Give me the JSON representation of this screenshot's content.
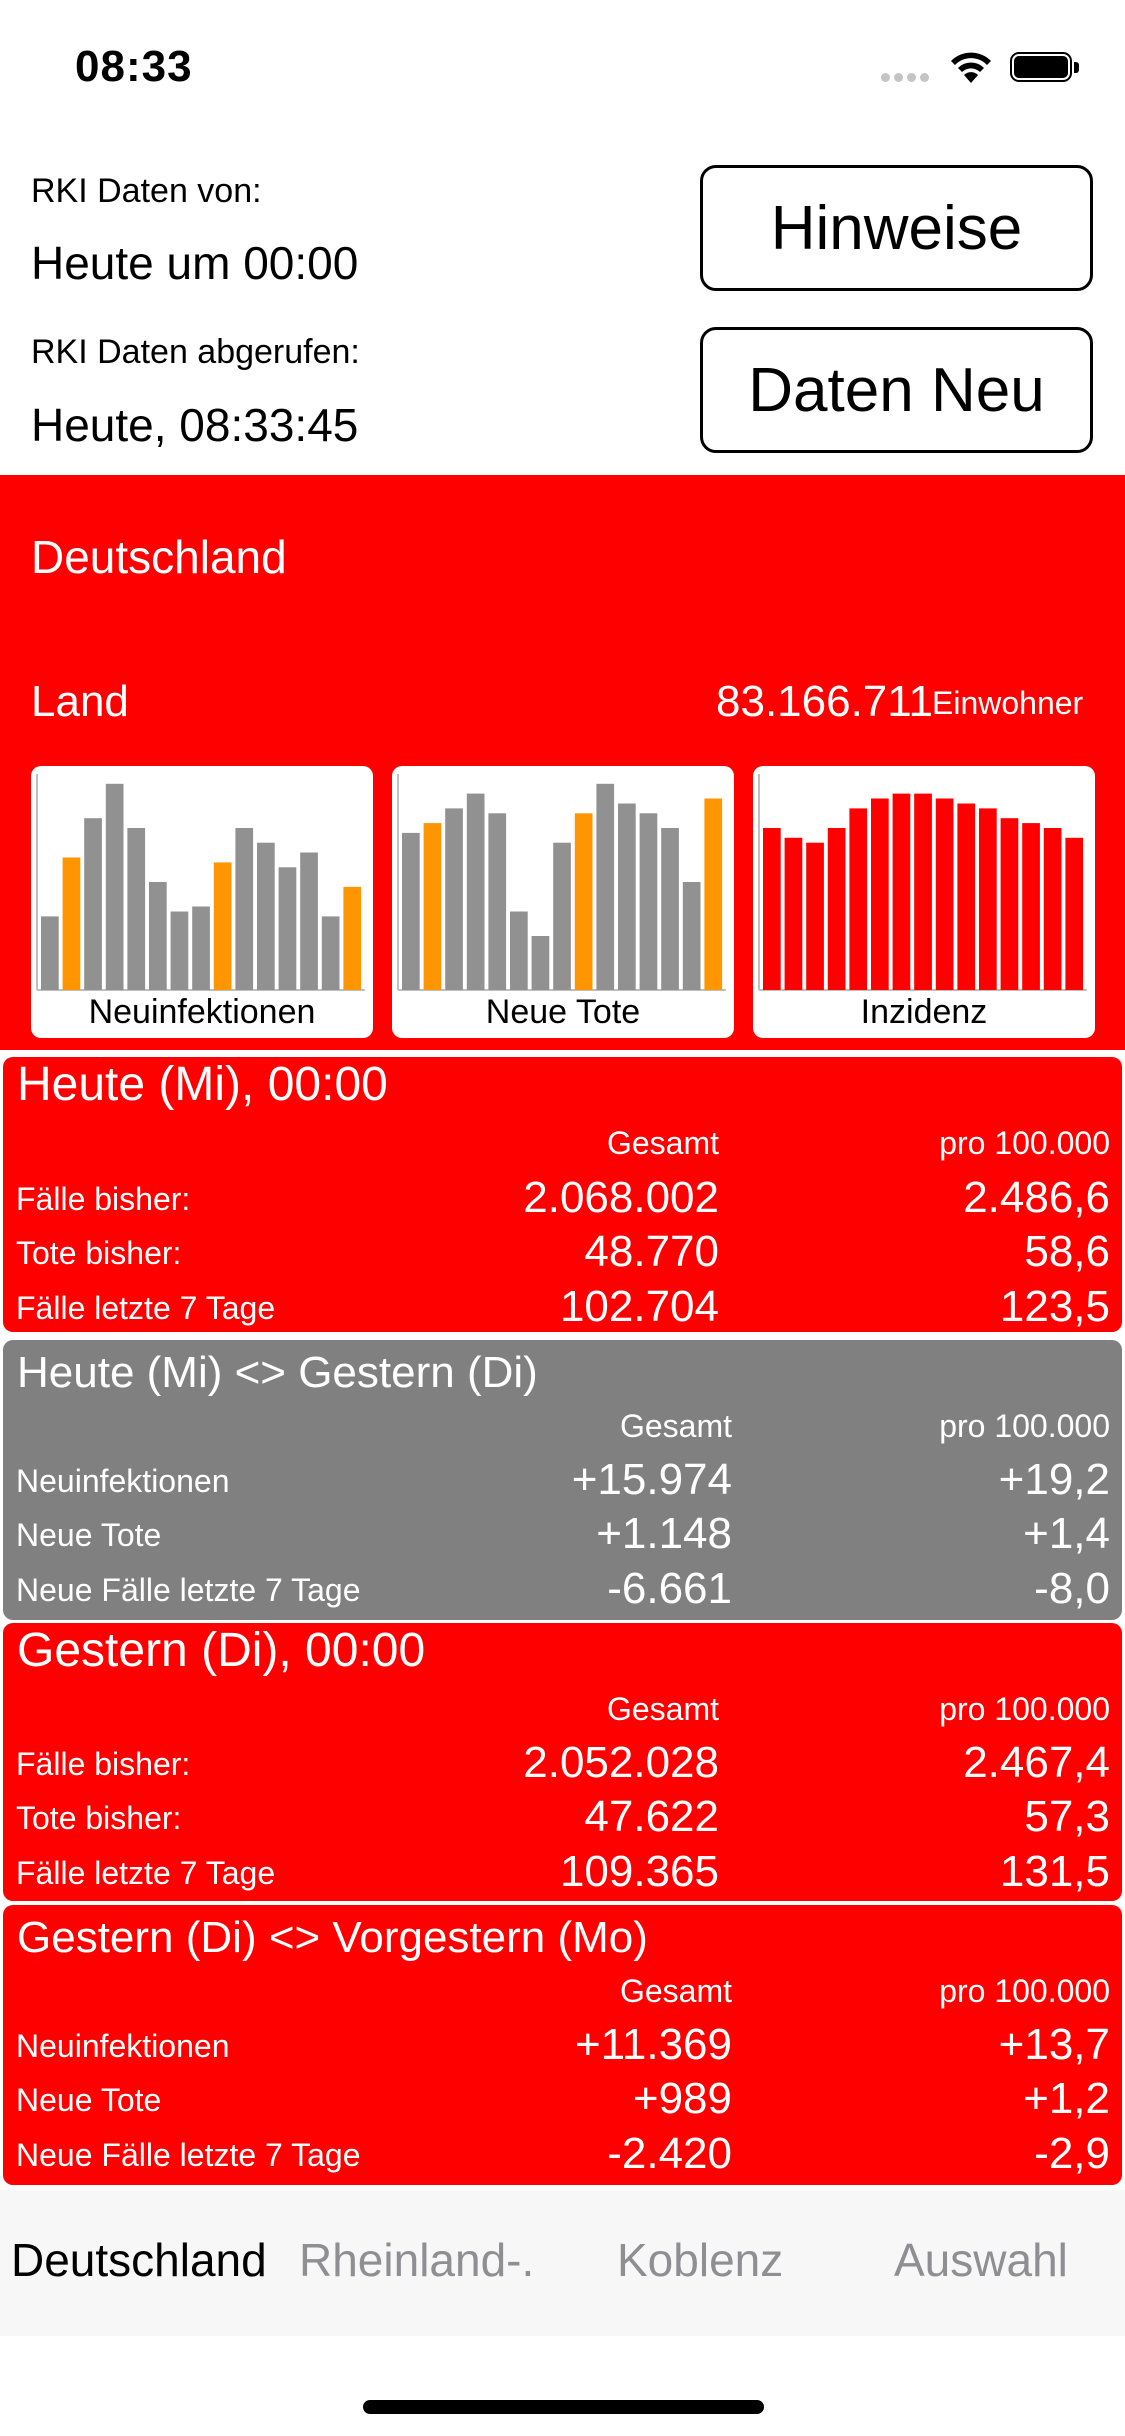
{
  "status_bar": {
    "time": "08:33"
  },
  "header": {
    "data_from_label": "RKI Daten von:",
    "data_from_value": "Heute um 00:00",
    "retrieved_label": "RKI Daten abgerufen:",
    "retrieved_value": "Heute, 08:33:45",
    "hints_button": "Hinweise",
    "refresh_button": "Daten Neu"
  },
  "region": {
    "name": "Deutschland",
    "type_label": "Land",
    "population": "83.166.711",
    "population_unit": "Einwohner"
  },
  "colors": {
    "red": "#ff0000",
    "gray_block": "#808080",
    "bar_gray": "#919191",
    "bar_orange": "#ff9500",
    "bar_red": "#ff0000"
  },
  "chart_data": [
    {
      "type": "bar",
      "title": "Neuinfektionen",
      "values": [
        7.5,
        13.5,
        17.5,
        21,
        16.5,
        11,
        8,
        8.5,
        13,
        16.5,
        15,
        12.5,
        14,
        7.5,
        10.5
      ],
      "highlight": [
        false,
        true,
        false,
        false,
        false,
        false,
        false,
        false,
        true,
        false,
        false,
        false,
        false,
        false,
        true
      ],
      "ylim": [
        0,
        22
      ]
    },
    {
      "type": "bar",
      "title": "Neue Tote",
      "values": [
        16,
        17,
        18.5,
        20,
        18,
        8,
        5.5,
        15,
        18,
        21,
        19,
        18,
        16.5,
        11,
        19.5
      ],
      "highlight": [
        false,
        true,
        false,
        false,
        false,
        false,
        false,
        false,
        true,
        false,
        false,
        false,
        false,
        false,
        true
      ],
      "ylim": [
        0,
        22
      ]
    },
    {
      "type": "bar",
      "title": "Inzidenz",
      "values": [
        16.5,
        15.5,
        15,
        16.5,
        18.5,
        19.5,
        20,
        20,
        19.5,
        19,
        18.5,
        17.5,
        17,
        16.5,
        15.5
      ],
      "highlight": [],
      "ylim": [
        0,
        22
      ]
    }
  ],
  "blocks": [
    {
      "title": "Heute (Mi), 00:00",
      "col1": "Gesamt",
      "col2": "pro 100.000",
      "rows": [
        {
          "label": "Fälle bisher:",
          "total": "2.068.002",
          "per100k": "2.486,6"
        },
        {
          "label": "Tote bisher:",
          "total": "48.770",
          "per100k": "58,6"
        },
        {
          "label": "Fälle letzte 7 Tage",
          "total": "102.704",
          "per100k": "123,5"
        }
      ]
    },
    {
      "title": "Heute (Mi) <> Gestern (Di)",
      "col1": "Gesamt",
      "col2": "pro 100.000",
      "rows": [
        {
          "label": "Neuinfektionen",
          "total": "+15.974",
          "per100k": "+19,2"
        },
        {
          "label": "Neue Tote",
          "total": "+1.148",
          "per100k": "+1,4"
        },
        {
          "label": "Neue Fälle letzte 7 Tage",
          "total": "-6.661",
          "per100k": "-8,0"
        }
      ]
    },
    {
      "title": "Gestern (Di), 00:00",
      "col1": "Gesamt",
      "col2": "pro 100.000",
      "rows": [
        {
          "label": "Fälle bisher:",
          "total": "2.052.028",
          "per100k": "2.467,4"
        },
        {
          "label": "Tote bisher:",
          "total": "47.622",
          "per100k": "57,3"
        },
        {
          "label": "Fälle letzte 7 Tage",
          "total": "109.365",
          "per100k": "131,5"
        }
      ]
    },
    {
      "title": "Gestern (Di) <> Vorgestern (Mo)",
      "col1": "Gesamt",
      "col2": "pro 100.000",
      "rows": [
        {
          "label": "Neuinfektionen",
          "total": "+11.369",
          "per100k": "+13,7"
        },
        {
          "label": "Neue Tote",
          "total": "+989",
          "per100k": "+1,2"
        },
        {
          "label": "Neue Fälle letzte 7 Tage",
          "total": "-2.420",
          "per100k": "-2,9"
        }
      ]
    }
  ],
  "tabs": [
    {
      "label": "Deutschland",
      "active": true
    },
    {
      "label": "Rheinland-.",
      "active": false
    },
    {
      "label": "Koblenz",
      "active": false
    },
    {
      "label": "Auswahl",
      "active": false
    }
  ]
}
